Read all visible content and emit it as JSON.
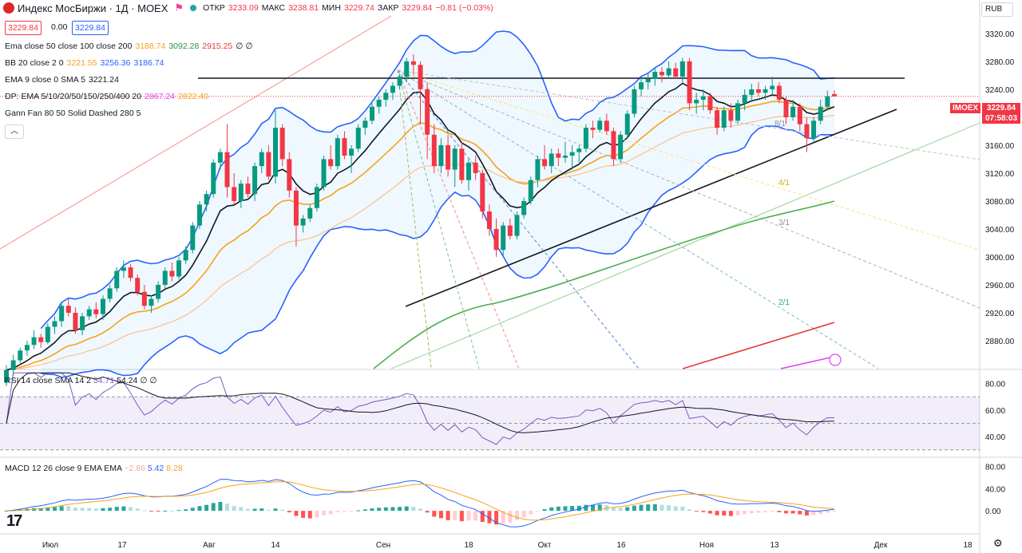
{
  "header": {
    "title": "Индекс МосБиржи · 1Д · MOEX",
    "ohlc": {
      "open_label": "ОТКР",
      "open": "3233.09",
      "high_label": "МАКС",
      "high": "3238.81",
      "low_label": "МИН",
      "low": "3229.74",
      "close_label": "ЗАКР",
      "close": "3229.84",
      "change": "−0.81 (−0.03%)"
    },
    "bid": "3229.84",
    "spread": "0.00",
    "ask": "3229.84",
    "currency": "RUB",
    "flag_icon": "flag-icon",
    "colors": {
      "up": "#089981",
      "down": "#f23645",
      "ema50": "#f7a21b",
      "ema100": "#4caf50",
      "ema200": "#f23645",
      "bb": "#2962ff"
    }
  },
  "indicators": [
    {
      "name": "Ema close 50 close 100 close 200",
      "values": [
        "3188.74",
        "3092.28",
        "2915.25"
      ],
      "colors": [
        "#f7a21b",
        "#388e3c",
        "#e53935"
      ],
      "tail": "∅ ∅"
    },
    {
      "name": "BB 20 close 2 0",
      "values": [
        "3221.55",
        "3256.36",
        "3186.74"
      ],
      "colors": [
        "#f7a21b",
        "#2962ff",
        "#2962ff"
      ],
      "tail": ""
    },
    {
      "name": "EMA 9 close 0 SMA 5",
      "values": [
        "3221.24"
      ],
      "colors": [
        "#131722"
      ],
      "tail": ""
    },
    {
      "name": "DP: EMA 5/10/20/50/150/250/400 20",
      "values": [
        "2867.24",
        "2822.40"
      ],
      "colors": [
        "#e040fb",
        "#f7a21b"
      ],
      "tail": ""
    },
    {
      "name": "Gann Fan 80 50 Solid Dashed 280 5",
      "values": [],
      "colors": [],
      "tail": ""
    }
  ],
  "rsi_pane": {
    "name": "RSI 14 close SMA 14 2",
    "values": [
      "54.71",
      "54.24"
    ],
    "colors": [
      "#7e57c2",
      "#131722"
    ],
    "tail": "∅ ∅",
    "ticks": [
      "80.00",
      "60.00",
      "40.00"
    ]
  },
  "macd_pane": {
    "name": "MACD 12 26 close 9 EMA EMA",
    "values": [
      "−2.86",
      "5.42",
      "8.28"
    ],
    "colors": [
      "#f7a3a8",
      "#2962ff",
      "#f7a21b"
    ],
    "ticks": [
      "80.00",
      "40.00",
      "0.00"
    ]
  },
  "price_axis": {
    "ticks": [
      "3320.00",
      "3280.00",
      "3240.00",
      "3200.00",
      "3160.00",
      "3120.00",
      "3080.00",
      "3040.00",
      "3000.00",
      "2960.00",
      "2920.00",
      "2880.00"
    ]
  },
  "price_tag": {
    "symbol": "IMOEX",
    "price": "3229.84",
    "timer": "07:58:03"
  },
  "time_axis": {
    "ticks": [
      "Июл",
      "17",
      "Авг",
      "14",
      "Сен",
      "18",
      "Окт",
      "16",
      "Ноя",
      "13",
      "Дек",
      "18"
    ]
  },
  "gann_labels": [
    "8/1",
    "4/1",
    "3/1",
    "2/1"
  ],
  "chart_data": {
    "type": "line",
    "description_values_in_price_units": true,
    "ylim": [
      2840,
      3345
    ],
    "candles": [
      [
        2820,
        2845,
        2815,
        2838
      ],
      [
        2838,
        2860,
        2830,
        2852
      ],
      [
        2852,
        2870,
        2845,
        2866
      ],
      [
        2866,
        2880,
        2858,
        2874
      ],
      [
        2874,
        2895,
        2868,
        2885
      ],
      [
        2885,
        2890,
        2870,
        2878
      ],
      [
        2878,
        2905,
        2875,
        2900
      ],
      [
        2900,
        2915,
        2890,
        2908
      ],
      [
        2908,
        2935,
        2900,
        2930
      ],
      [
        2930,
        2940,
        2915,
        2920
      ],
      [
        2920,
        2928,
        2890,
        2895
      ],
      [
        2895,
        2920,
        2888,
        2915
      ],
      [
        2915,
        2930,
        2910,
        2925
      ],
      [
        2925,
        2935,
        2912,
        2918
      ],
      [
        2918,
        2945,
        2910,
        2940
      ],
      [
        2940,
        2960,
        2935,
        2955
      ],
      [
        2955,
        2985,
        2950,
        2980
      ],
      [
        2980,
        2995,
        2970,
        2985
      ],
      [
        2985,
        2990,
        2965,
        2970
      ],
      [
        2970,
        2975,
        2945,
        2950
      ],
      [
        2950,
        2960,
        2925,
        2930
      ],
      [
        2930,
        2945,
        2920,
        2940
      ],
      [
        2940,
        2965,
        2935,
        2960
      ],
      [
        2960,
        2985,
        2955,
        2980
      ],
      [
        2980,
        2992,
        2965,
        2972
      ],
      [
        2972,
        3000,
        2968,
        2995
      ],
      [
        2995,
        3015,
        2990,
        3010
      ],
      [
        3010,
        3050,
        3005,
        3045
      ],
      [
        3045,
        3080,
        3040,
        3075
      ],
      [
        3075,
        3095,
        3065,
        3090
      ],
      [
        3090,
        3140,
        3085,
        3135
      ],
      [
        3135,
        3155,
        3125,
        3150
      ],
      [
        3150,
        3190,
        3085,
        3100
      ],
      [
        3100,
        3120,
        3075,
        3080
      ],
      [
        3080,
        3110,
        3070,
        3105
      ],
      [
        3105,
        3115,
        3085,
        3090
      ],
      [
        3090,
        3135,
        3080,
        3130
      ],
      [
        3130,
        3155,
        3120,
        3150
      ],
      [
        3150,
        3160,
        3110,
        3115
      ],
      [
        3115,
        3210,
        3105,
        3185
      ],
      [
        3185,
        3190,
        3130,
        3140
      ],
      [
        3140,
        3150,
        3085,
        3095
      ],
      [
        3095,
        3100,
        3015,
        3045
      ],
      [
        3045,
        3060,
        3035,
        3055
      ],
      [
        3055,
        3075,
        3050,
        3070
      ],
      [
        3070,
        3105,
        3065,
        3100
      ],
      [
        3100,
        3145,
        3095,
        3140
      ],
      [
        3140,
        3160,
        3125,
        3130
      ],
      [
        3130,
        3175,
        3125,
        3170
      ],
      [
        3170,
        3180,
        3140,
        3145
      ],
      [
        3145,
        3160,
        3120,
        3155
      ],
      [
        3155,
        3190,
        3150,
        3185
      ],
      [
        3185,
        3200,
        3175,
        3195
      ],
      [
        3195,
        3220,
        3190,
        3215
      ],
      [
        3215,
        3230,
        3205,
        3225
      ],
      [
        3225,
        3240,
        3215,
        3235
      ],
      [
        3235,
        3250,
        3225,
        3245
      ],
      [
        3245,
        3262,
        3240,
        3258
      ],
      [
        3258,
        3285,
        3250,
        3280
      ],
      [
        3280,
        3290,
        3260,
        3275
      ],
      [
        3275,
        3280,
        3190,
        3240
      ],
      [
        3240,
        3250,
        3140,
        3175
      ],
      [
        3175,
        3190,
        3120,
        3130
      ],
      [
        3130,
        3170,
        3120,
        3160
      ],
      [
        3160,
        3175,
        3115,
        3125
      ],
      [
        3125,
        3160,
        3100,
        3155
      ],
      [
        3155,
        3165,
        3105,
        3110
      ],
      [
        3110,
        3140,
        3095,
        3135
      ],
      [
        3135,
        3145,
        3110,
        3120
      ],
      [
        3120,
        3125,
        3055,
        3065
      ],
      [
        3065,
        3075,
        3030,
        3040
      ],
      [
        3040,
        3055,
        3000,
        3010
      ],
      [
        3010,
        3050,
        3000,
        3045
      ],
      [
        3045,
        3055,
        3025,
        3030
      ],
      [
        3030,
        3065,
        3025,
        3060
      ],
      [
        3060,
        3085,
        3055,
        3080
      ],
      [
        3080,
        3115,
        3075,
        3110
      ],
      [
        3110,
        3145,
        3100,
        3140
      ],
      [
        3140,
        3160,
        3125,
        3130
      ],
      [
        3130,
        3155,
        3120,
        3148
      ],
      [
        3148,
        3155,
        3130,
        3142
      ],
      [
        3142,
        3165,
        3135,
        3145
      ],
      [
        3145,
        3160,
        3125,
        3150
      ],
      [
        3150,
        3160,
        3135,
        3155
      ],
      [
        3155,
        3190,
        3150,
        3185
      ],
      [
        3185,
        3195,
        3170,
        3182
      ],
      [
        3182,
        3200,
        3178,
        3195
      ],
      [
        3195,
        3205,
        3175,
        3180
      ],
      [
        3180,
        3185,
        3130,
        3140
      ],
      [
        3140,
        3180,
        3135,
        3175
      ],
      [
        3175,
        3210,
        3170,
        3205
      ],
      [
        3205,
        3245,
        3200,
        3240
      ],
      [
        3240,
        3258,
        3230,
        3250
      ],
      [
        3250,
        3262,
        3240,
        3255
      ],
      [
        3255,
        3270,
        3245,
        3265
      ],
      [
        3265,
        3272,
        3250,
        3260
      ],
      [
        3260,
        3280,
        3255,
        3270
      ],
      [
        3270,
        3278,
        3255,
        3258
      ],
      [
        3258,
        3285,
        3250,
        3280
      ],
      [
        3280,
        3285,
        3210,
        3220
      ],
      [
        3220,
        3235,
        3205,
        3225
      ],
      [
        3225,
        3240,
        3210,
        3230
      ],
      [
        3230,
        3235,
        3205,
        3210
      ],
      [
        3210,
        3215,
        3175,
        3185
      ],
      [
        3185,
        3215,
        3180,
        3210
      ],
      [
        3210,
        3220,
        3185,
        3195
      ],
      [
        3195,
        3225,
        3190,
        3220
      ],
      [
        3220,
        3240,
        3210,
        3232
      ],
      [
        3232,
        3248,
        3225,
        3240
      ],
      [
        3240,
        3250,
        3230,
        3235
      ],
      [
        3235,
        3245,
        3225,
        3240
      ],
      [
        3240,
        3258,
        3232,
        3245
      ],
      [
        3245,
        3250,
        3220,
        3225
      ],
      [
        3225,
        3230,
        3190,
        3200
      ],
      [
        3200,
        3225,
        3195,
        3215
      ],
      [
        3215,
        3220,
        3180,
        3190
      ],
      [
        3190,
        3200,
        3150,
        3170
      ],
      [
        3170,
        3200,
        3165,
        3195
      ],
      [
        3195,
        3225,
        3190,
        3215
      ],
      [
        3215,
        3238,
        3210,
        3230
      ],
      [
        3233.09,
        3238.81,
        3229.74,
        3229.84
      ]
    ],
    "rsi_levels": {
      "upper": 70,
      "middle": 50,
      "lower": 30
    },
    "rsi_range": [
      25,
      90
    ],
    "macd_range": [
      -40,
      95
    ]
  }
}
